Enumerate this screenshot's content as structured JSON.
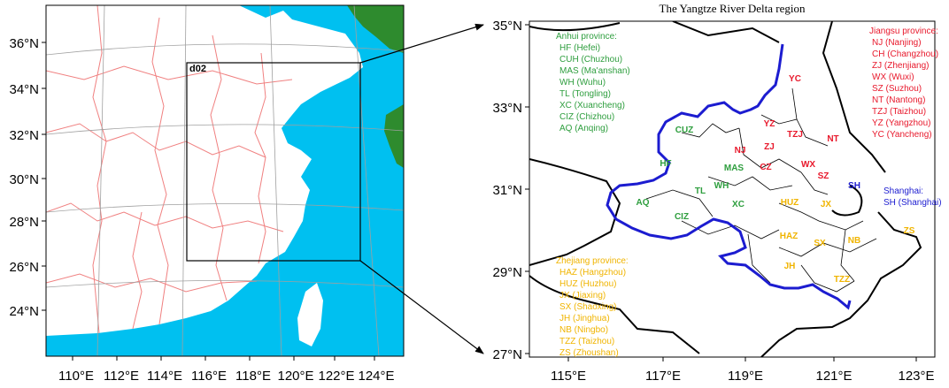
{
  "left_map": {
    "lat_ticks": [
      "36°N",
      "34°N",
      "32°N",
      "30°N",
      "28°N",
      "26°N",
      "24°N"
    ],
    "lon_ticks": [
      "110°E",
      "112°E",
      "114°E",
      "116°E",
      "118°E",
      "120°E",
      "122°E",
      "124°E"
    ],
    "domain_label": "d02",
    "colors": {
      "ocean": "#00c0f0",
      "land": "#ffffff",
      "foreign_land": "#2e8b2e",
      "province_border": "#f08080"
    }
  },
  "right_map": {
    "title": "The Yangtze River Delta region",
    "lat_ticks": [
      "35°N",
      "33°N",
      "31°N",
      "29°N",
      "27°N"
    ],
    "lon_ticks": [
      "115°E",
      "117°E",
      "119°E",
      "121°E",
      "123°E"
    ],
    "colors": {
      "anhui": "#2e9e3e",
      "jiangsu": "#e8192c",
      "zhejiang": "#f0b400",
      "shanghai": "#1c1cd0",
      "region_boundary": "#1c1cd0"
    },
    "legends": {
      "anhui": {
        "title": "Anhui province:",
        "items": [
          "HF (Hefei)",
          "CUH (Chuzhou)",
          "MAS (Ma'anshan)",
          "WH (Wuhu)",
          "TL (Tongling)",
          "XC (Xuancheng)",
          "CIZ (Chizhou)",
          "AQ (Anqing)"
        ]
      },
      "jiangsu": {
        "title": "Jiangsu province:",
        "items": [
          "NJ (Nanjing)",
          "CH (Changzhou)",
          "ZJ (Zhenjiang)",
          "WX (Wuxi)",
          "SZ (Suzhou)",
          "NT (Nantong)",
          "TZJ (Taizhou)",
          "YZ (Yangzhou)",
          "YC (Yancheng)"
        ]
      },
      "zhejiang": {
        "title": "Zhejiang province:",
        "items": [
          "HAZ (Hangzhou)",
          "HUZ (Huzhou)",
          "JX (Jiaxing)",
          "SX (Shaoxing)",
          "JH (Jinghua)",
          "NB (Ningbo)",
          "TZZ (Taizhou)",
          "ZS (Zhoushan)"
        ]
      },
      "shanghai": {
        "title": "Shanghai:",
        "items": [
          "SH (Shanghai)"
        ]
      }
    },
    "city_labels": [
      {
        "text": "YC",
        "group": "jiangsu"
      },
      {
        "text": "YZ",
        "group": "jiangsu"
      },
      {
        "text": "TZJ",
        "group": "jiangsu"
      },
      {
        "text": "NT",
        "group": "jiangsu"
      },
      {
        "text": "NJ",
        "group": "jiangsu"
      },
      {
        "text": "ZJ",
        "group": "jiangsu"
      },
      {
        "text": "CZ",
        "group": "jiangsu"
      },
      {
        "text": "WX",
        "group": "jiangsu"
      },
      {
        "text": "SZ",
        "group": "jiangsu"
      },
      {
        "text": "CUZ",
        "group": "anhui"
      },
      {
        "text": "HF",
        "group": "anhui"
      },
      {
        "text": "MAS",
        "group": "anhui"
      },
      {
        "text": "WH",
        "group": "anhui"
      },
      {
        "text": "TL",
        "group": "anhui"
      },
      {
        "text": "XC",
        "group": "anhui"
      },
      {
        "text": "AQ",
        "group": "anhui"
      },
      {
        "text": "CIZ",
        "group": "anhui"
      },
      {
        "text": "SH",
        "group": "shanghai"
      },
      {
        "text": "HUZ",
        "group": "zhejiang"
      },
      {
        "text": "JX",
        "group": "zhejiang"
      },
      {
        "text": "HAZ",
        "group": "zhejiang"
      },
      {
        "text": "SX",
        "group": "zhejiang"
      },
      {
        "text": "NB",
        "group": "zhejiang"
      },
      {
        "text": "ZS",
        "group": "zhejiang"
      },
      {
        "text": "JH",
        "group": "zhejiang"
      },
      {
        "text": "TZZ",
        "group": "zhejiang"
      }
    ]
  }
}
